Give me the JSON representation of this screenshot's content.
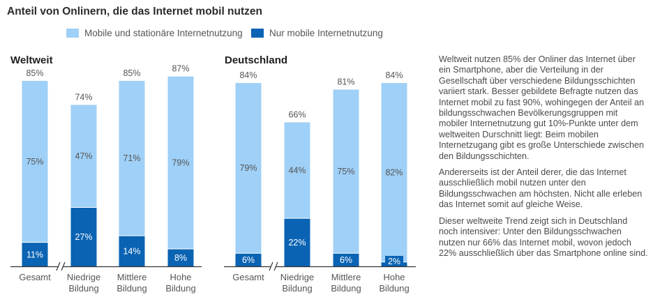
{
  "title": "Anteil von Onlinern, die das Internet mobil nutzen",
  "colors": {
    "light": "#9fd0f7",
    "dark": "#0a63b3",
    "axis": "#333333",
    "label": "#555555"
  },
  "legend": [
    {
      "label": "Mobile und stationäre Internetnutzung",
      "color": "#9fd0f7"
    },
    {
      "label": "Nur mobile Internetnutzung",
      "color": "#0a63b3"
    }
  ],
  "chart_data": [
    {
      "type": "bar",
      "stacked": true,
      "title": "Weltweit",
      "categories": [
        "Gesamt",
        "Niedrige\nBildung",
        "Mittlere\nBildung",
        "Hohe\nBildung"
      ],
      "totals": [
        85,
        74,
        85,
        87
      ],
      "series": [
        {
          "name": "Nur mobile Internetnutzung",
          "values": [
            11,
            27,
            14,
            8
          ]
        },
        {
          "name": "Mobile und stationäre Internetnutzung",
          "values": [
            75,
            47,
            71,
            79
          ]
        }
      ],
      "axis_break_after_first": true
    },
    {
      "type": "bar",
      "stacked": true,
      "title": "Deutschland",
      "categories": [
        "Gesamt",
        "Niedrige\nBildung",
        "Mittlere\nBildung",
        "Hohe\nBildung"
      ],
      "totals": [
        84,
        66,
        81,
        84
      ],
      "series": [
        {
          "name": "Nur mobile Internetnutzung",
          "values": [
            6,
            22,
            6,
            2
          ]
        },
        {
          "name": "Mobile und stationäre Internetnutzung",
          "values": [
            79,
            44,
            75,
            82
          ]
        }
      ],
      "axis_break_after_first": true
    }
  ],
  "paragraphs": [
    "Weltweit nutzen 85% der Onliner das Internet über ein Smartphone, aber die Verteilung in der Gesellschaft über verschiedene Bildungsschichten variiert stark. Besser gebildete Befragte nutzen das Internet mobil zu fast 90%, wohingegen der Anteil an bildungsschwachen Bevölkerungsgruppen mit mobiler Internetnutzung gut 10%-Punkte unter dem weltweiten Durschnitt liegt: Beim mobilen Internetzugang gibt es große Unterschiede zwischen den Bildungsschichten.",
    "Andererseits ist der Anteil derer, die das Internet ausschließlich mobil nutzen unter den Bildungsschwachen am höchsten. Nicht alle erleben das Internet somit auf gleiche Weise.",
    "Dieser weltweite Trend zeigt sich in Deutschland noch intensiver: Unter den Bildungsschwachen nutzen nur 66% das Internet mobil, wovon jedoch 22% ausschließlich über das Smartphone online sind."
  ]
}
